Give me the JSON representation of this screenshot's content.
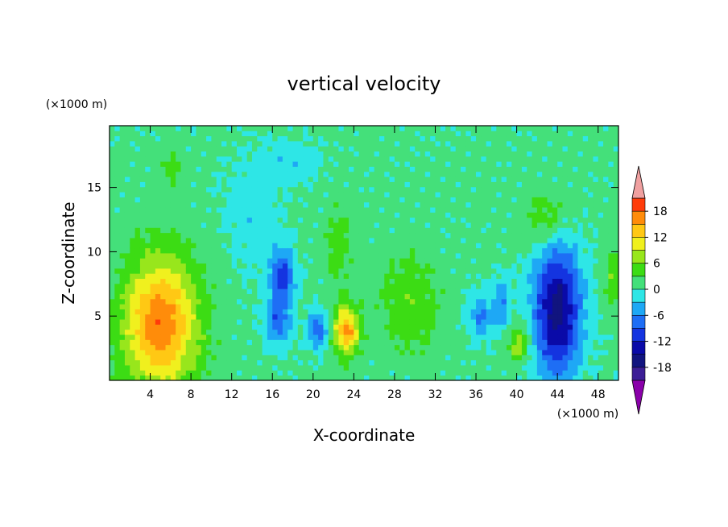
{
  "chart_data": {
    "type": "heatmap",
    "title": "vertical velocity",
    "xlabel": "X-coordinate",
    "ylabel": "Z-coordinate",
    "x_unit": "(×1000 m)",
    "y_unit": "(×1000 m)",
    "xlim": [
      0,
      50
    ],
    "ylim": [
      0,
      19.8
    ],
    "x_ticks": [
      4,
      8,
      12,
      16,
      20,
      24,
      28,
      32,
      36,
      40,
      44,
      48
    ],
    "y_ticks": [
      5,
      10,
      15
    ],
    "colorbar": {
      "levels": [
        -21,
        -18,
        -15,
        -12,
        -9,
        -6,
        -3,
        0,
        3,
        6,
        9,
        12,
        15,
        18,
        21
      ],
      "tick_labels": [
        "18",
        "12",
        "6",
        "0",
        "-6",
        "-12",
        "-18"
      ],
      "tick_values": [
        18,
        12,
        6,
        0,
        -6,
        -12,
        -18
      ],
      "colors": [
        "#8a00aa",
        "#3c1e96",
        "#11147f",
        "#0a0aa8",
        "#1434e0",
        "#1e6ef5",
        "#1ea8f5",
        "#2ee6e6",
        "#44e07a",
        "#3cdc14",
        "#98e61c",
        "#f0f01e",
        "#ffc814",
        "#ff8c0a",
        "#ff3c0a",
        "#f0a0a0"
      ]
    },
    "features": [
      {
        "x": 5,
        "z": 4.5,
        "rx": 4.6,
        "rz": 6.5,
        "w": 17,
        "note": "updraft"
      },
      {
        "x": 23.3,
        "z": 3.9,
        "rx": 1.6,
        "rz": 2.4,
        "w": 15
      },
      {
        "x": 40.2,
        "z": 2.8,
        "rx": 1.3,
        "rz": 1.7,
        "w": 8
      },
      {
        "x": 29.5,
        "z": 6.0,
        "rx": 3.6,
        "rz": 5.0,
        "w": 5
      },
      {
        "x": 22.5,
        "z": 10.5,
        "rx": 1.8,
        "rz": 4.2,
        "w": 4
      },
      {
        "x": 43,
        "z": 12.5,
        "rx": 3.0,
        "rz": 3.0,
        "w": 5
      },
      {
        "x": 6.0,
        "z": 16.5,
        "rx": 2.0,
        "rz": 2.0,
        "w": 3
      },
      {
        "x": 49.5,
        "z": 8.0,
        "rx": 1.2,
        "rz": 3.0,
        "w": 5
      },
      {
        "x": 44,
        "z": 5.5,
        "rx": 2.9,
        "rz": 6.5,
        "w": -17
      },
      {
        "x": 17,
        "z": 8.0,
        "rx": 1.5,
        "rz": 2.8,
        "w": -11
      },
      {
        "x": 16.5,
        "z": 4.5,
        "rx": 1.6,
        "rz": 2.2,
        "w": -8
      },
      {
        "x": 20.5,
        "z": 4.0,
        "rx": 1.2,
        "rz": 1.8,
        "w": -9
      },
      {
        "x": 36.5,
        "z": 5.0,
        "rx": 1.5,
        "rz": 2.0,
        "w": -7
      },
      {
        "x": 38.5,
        "z": 6.0,
        "rx": 1.0,
        "rz": 2.5,
        "w": -6
      },
      {
        "x": 14,
        "z": 13,
        "rx": 3.0,
        "rz": 5.0,
        "w": -3
      },
      {
        "x": 18,
        "z": 17,
        "rx": 3.0,
        "rz": 2.0,
        "w": -3
      }
    ]
  }
}
